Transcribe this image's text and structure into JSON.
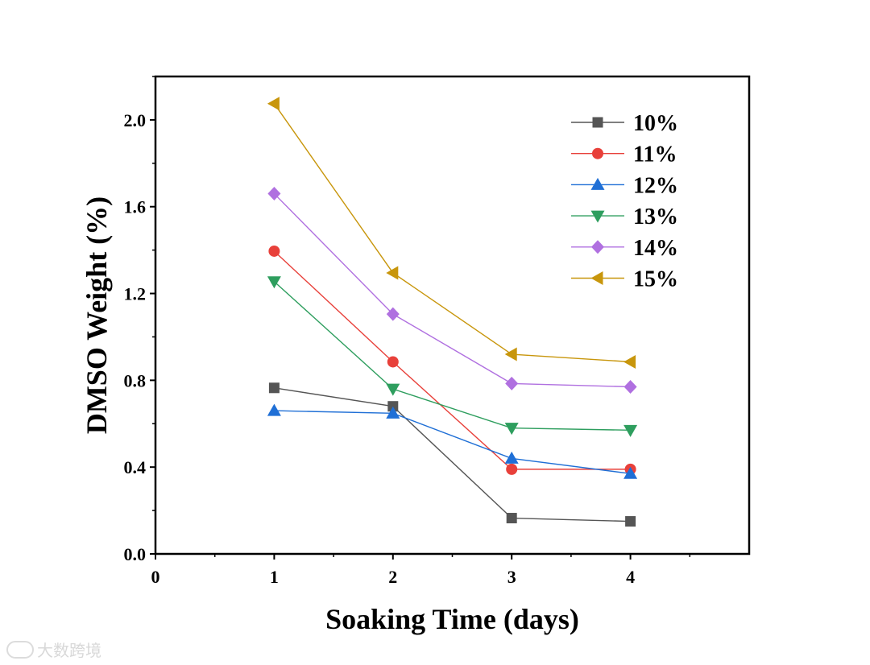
{
  "watermark": {
    "text": "大数跨境"
  },
  "chart_data": {
    "type": "line",
    "title": "",
    "xlabel": "Soaking Time (days)",
    "ylabel": "DMSO Weight (%)",
    "xlim": [
      0,
      5
    ],
    "ylim": [
      0,
      2.2
    ],
    "xticks": [
      0,
      1,
      2,
      3,
      4
    ],
    "xtick_labels": [
      "0",
      "1",
      "2",
      "3",
      "4"
    ],
    "yticks": [
      0.0,
      0.4,
      0.8,
      1.2,
      1.6,
      2.0
    ],
    "ytick_labels": [
      "0.0",
      "0.4",
      "0.8",
      "1.2",
      "1.6",
      "2.0"
    ],
    "grid": false,
    "legend_position": "top-right",
    "x": [
      1,
      2,
      3,
      4
    ],
    "series": [
      {
        "name": "10%",
        "color": "#555555",
        "marker": "square",
        "values": [
          0.765,
          0.68,
          0.165,
          0.15
        ]
      },
      {
        "name": "11%",
        "color": "#e8403a",
        "marker": "circle",
        "values": [
          1.395,
          0.885,
          0.39,
          0.39
        ]
      },
      {
        "name": "12%",
        "color": "#1f6fd6",
        "marker": "triangle-up",
        "values": [
          0.66,
          0.648,
          0.44,
          0.37
        ]
      },
      {
        "name": "13%",
        "color": "#2e9e5e",
        "marker": "triangle-down",
        "values": [
          1.255,
          0.76,
          0.58,
          0.57
        ]
      },
      {
        "name": "14%",
        "color": "#b070e0",
        "marker": "diamond",
        "values": [
          1.66,
          1.105,
          0.785,
          0.77
        ]
      },
      {
        "name": "15%",
        "color": "#c8960c",
        "marker": "triangle-left",
        "values": [
          2.075,
          1.295,
          0.92,
          0.885
        ]
      }
    ]
  }
}
